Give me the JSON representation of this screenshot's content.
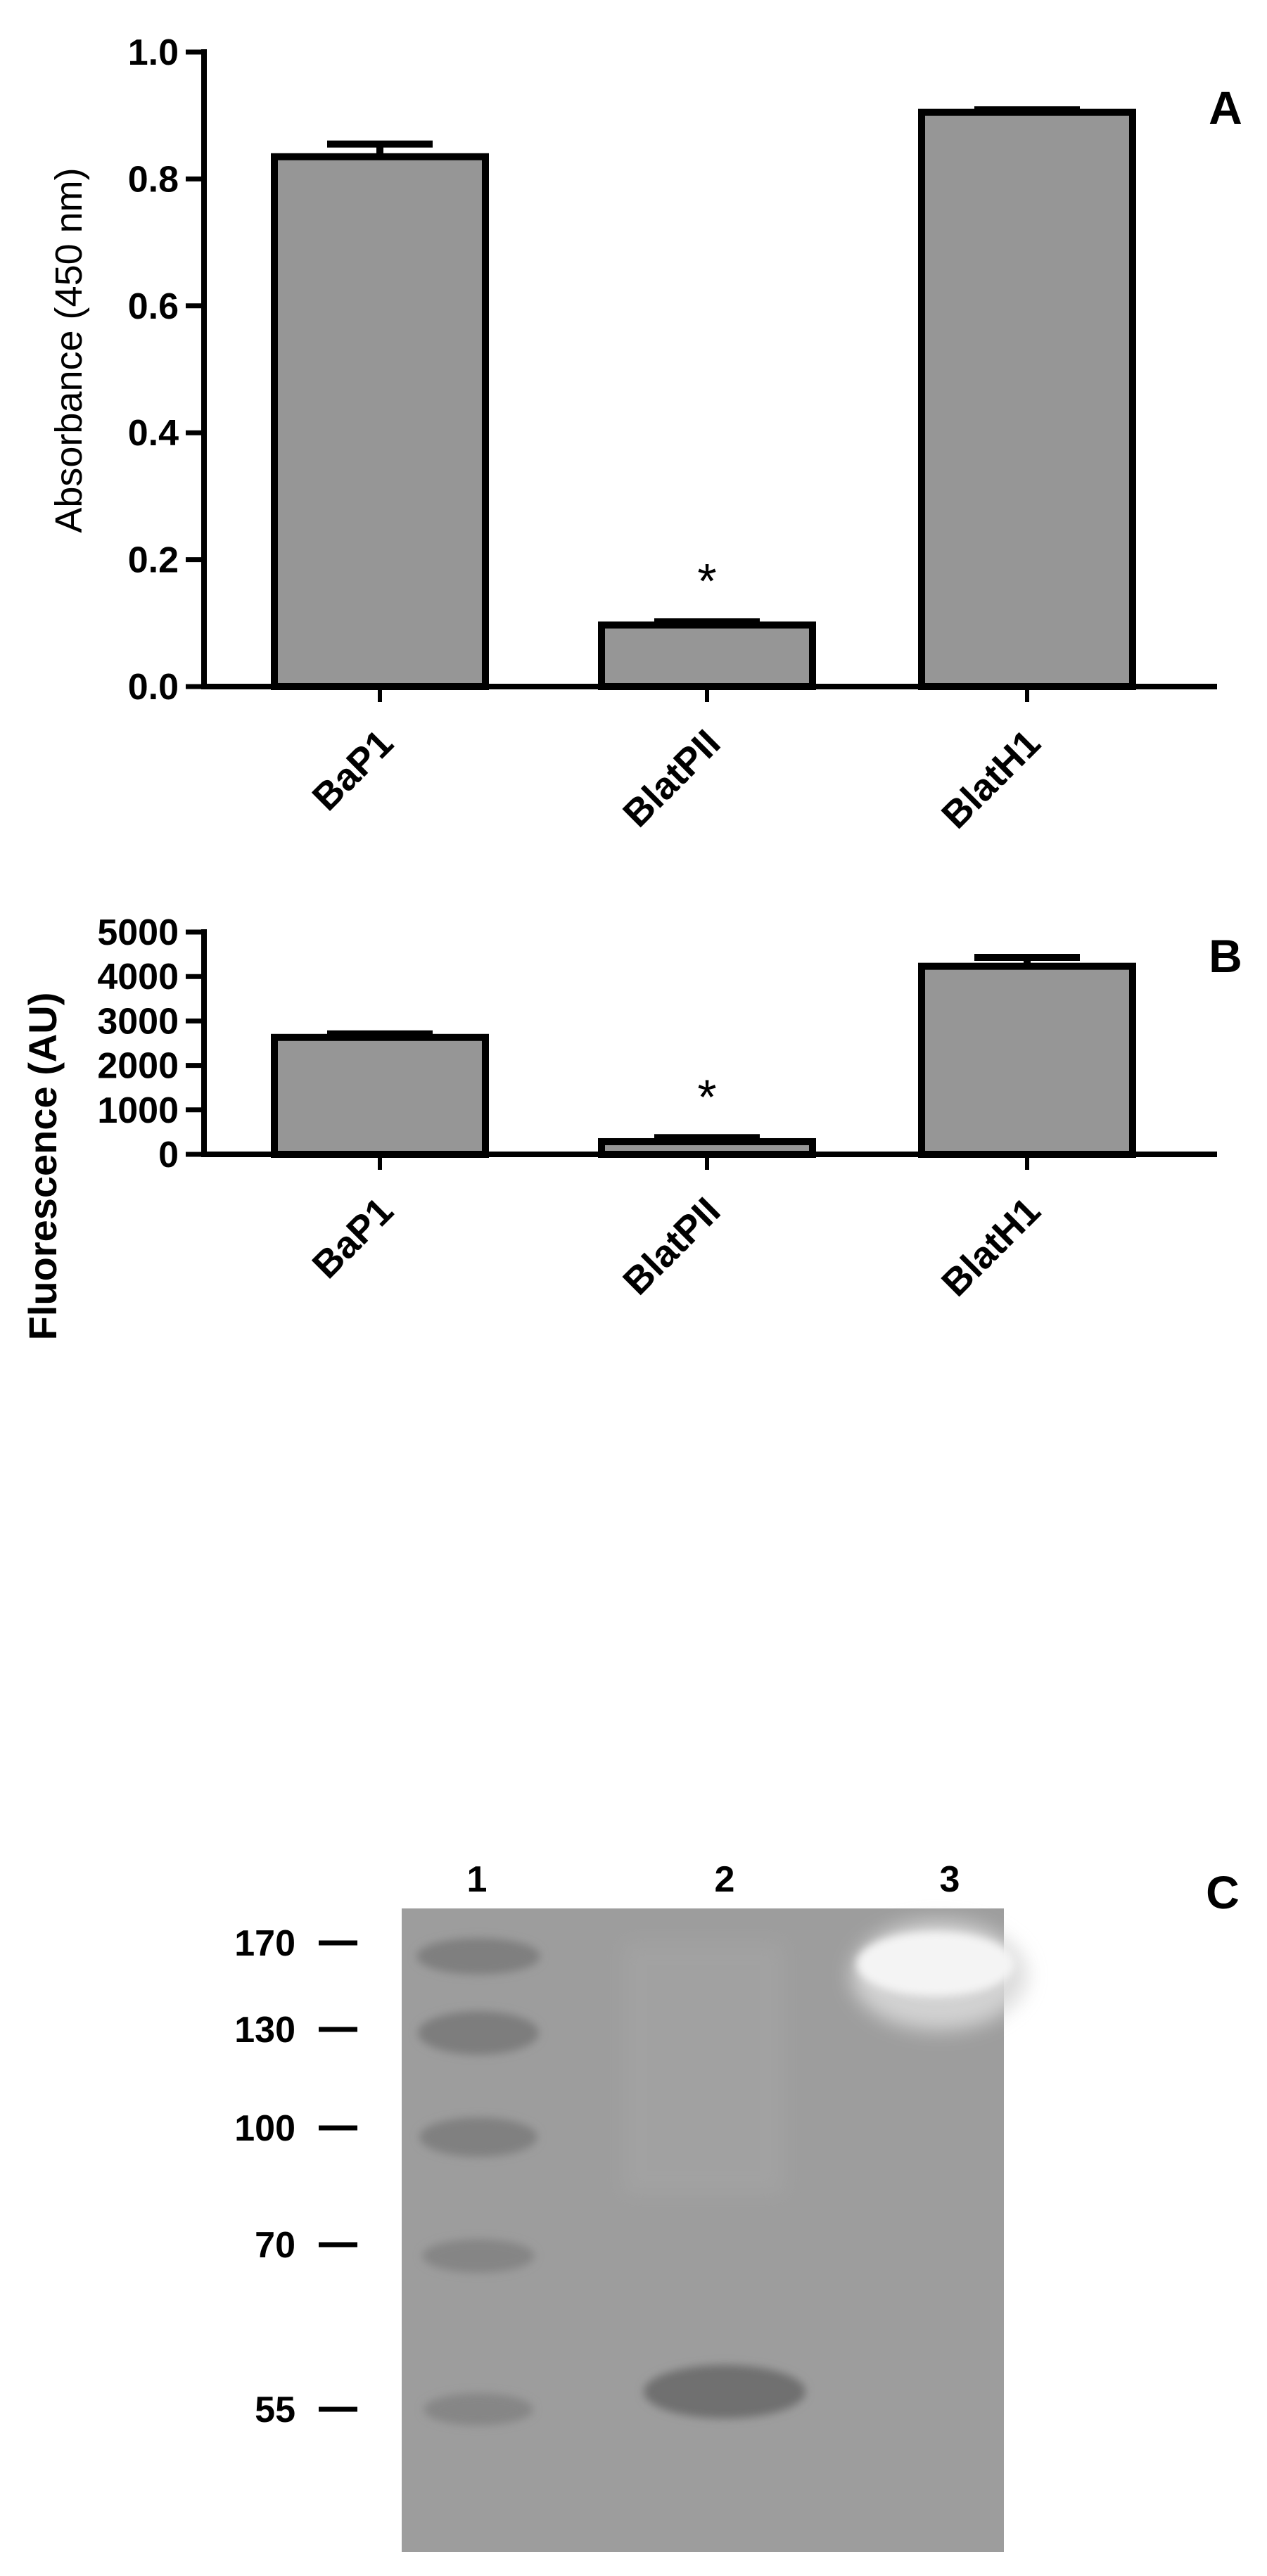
{
  "chart_data": [
    {
      "panel": "A",
      "type": "bar",
      "categories": [
        "BaP1",
        "BlatPII",
        "BlatH1"
      ],
      "values": [
        0.835,
        0.097,
        0.905
      ],
      "errors": [
        0.02,
        0.005,
        0.004
      ],
      "significance": [
        "",
        "*",
        ""
      ],
      "ylabel": "Absorbance (450 nm)",
      "ylim": [
        0,
        1.0
      ],
      "yticks": [
        0.0,
        0.2,
        0.4,
        0.6,
        0.8,
        1.0
      ],
      "ytick_labels": [
        "0.0",
        "0.2",
        "0.4",
        "0.6",
        "0.8",
        "1.0"
      ],
      "bar_color": "#969696"
    },
    {
      "panel": "B",
      "type": "bar",
      "categories": [
        "BaP1",
        "BlatPII",
        "BlatH1"
      ],
      "values": [
        2630,
        285,
        4230
      ],
      "errors": [
        80,
        90,
        200
      ],
      "significance": [
        "",
        "*",
        ""
      ],
      "ylabel": "Fluorescence (AU)",
      "ylim": [
        0,
        5000
      ],
      "yticks": [
        0,
        1000,
        2000,
        3000,
        4000,
        5000
      ],
      "ytick_labels": [
        "0",
        "1000",
        "2000",
        "3000",
        "4000",
        "5000"
      ],
      "bar_color": "#969696"
    }
  ],
  "gel": {
    "panel": "C",
    "lanes": [
      "1",
      "2",
      "3"
    ],
    "markers": [
      "170",
      "130",
      "100",
      "70",
      "55"
    ],
    "background_color": "#9d9d9d"
  }
}
